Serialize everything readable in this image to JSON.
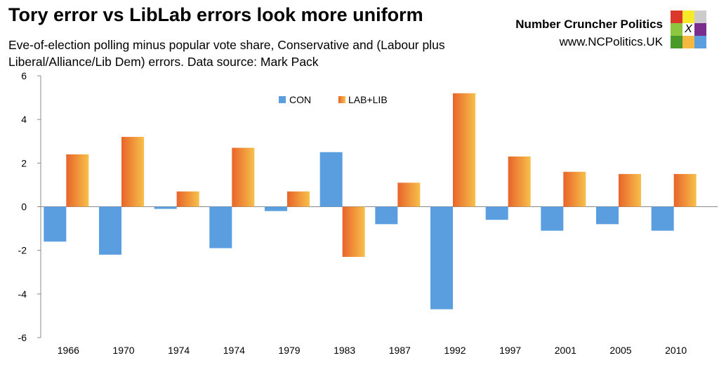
{
  "chart_data": {
    "type": "bar",
    "title": "Tory error vs LibLab errors look more uniform",
    "subtitle": "Eve-of-election polling minus popular vote share, Conservative and (Labour plus Liberal/Alliance/Lib Dem) errors. Data source: Mark Pack",
    "categories": [
      "1966",
      "1970",
      "1974",
      "1974",
      "1979",
      "1983",
      "1987",
      "1992",
      "1997",
      "2001",
      "2005",
      "2010"
    ],
    "series": [
      {
        "name": "CON",
        "color": "#5b9ee0",
        "values": [
          -1.6,
          -2.2,
          -0.1,
          -1.9,
          -0.2,
          2.5,
          -0.8,
          -4.7,
          -0.6,
          -1.1,
          -0.8,
          -1.1
        ]
      },
      {
        "name": "LAB+LIB",
        "color": "#e8642a",
        "color_gradient_end": "#f7c04a",
        "values": [
          2.4,
          3.2,
          0.7,
          2.7,
          0.7,
          -2.3,
          1.1,
          5.2,
          2.3,
          1.6,
          1.5,
          1.5
        ]
      }
    ],
    "ylim": [
      -6,
      6
    ],
    "yticks": [
      -6,
      -4,
      -2,
      0,
      2,
      4,
      6
    ],
    "grid": false,
    "legend_position": "top-center"
  },
  "brand": {
    "name": "Number Cruncher Politics",
    "url": "www.NCPolitics.UK",
    "logo_text": "X",
    "logo_colors": [
      "#d9382a",
      "#f5e92a",
      "#cccccc",
      "#8dc63f",
      "#ffffff",
      "#7b2d8e",
      "#4a9a2a",
      "#f5b941",
      "#5b9ee0"
    ]
  }
}
